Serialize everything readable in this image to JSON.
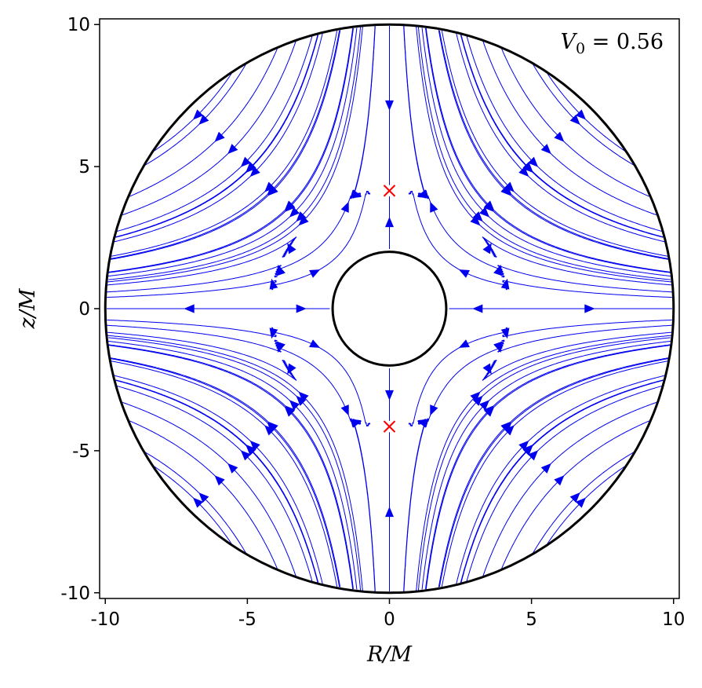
{
  "chart_data": {
    "type": "streamplot",
    "title": "",
    "xlabel": "R/M",
    "ylabel": "z/M",
    "xlim": [
      -10.2,
      10.2
    ],
    "ylim": [
      -10.2,
      10.2
    ],
    "x_ticks": [
      -10,
      -5,
      0,
      5,
      10
    ],
    "y_ticks": [
      -10,
      -5,
      0,
      5,
      10
    ],
    "x_tick_labels": [
      "-10",
      "-5",
      "0",
      "5",
      "10"
    ],
    "y_tick_labels": [
      "-10",
      "-5",
      "0",
      "5",
      "10"
    ],
    "grid": false,
    "annotation": {
      "symbol": "V",
      "subscript": "0",
      "text": " = 0.56",
      "position": "top-right"
    },
    "circles": [
      {
        "name": "outer-boundary",
        "center": [
          0,
          0
        ],
        "radius": 10
      },
      {
        "name": "inner-boundary",
        "center": [
          0,
          0
        ],
        "radius": 2
      }
    ],
    "stagnation_points": [
      {
        "x": 0,
        "y": 4.15
      },
      {
        "x": 0,
        "y": -4.15
      }
    ],
    "stream_color": "#0000ee",
    "boundary_color": "#000000",
    "marker_color": "#ff0000"
  }
}
